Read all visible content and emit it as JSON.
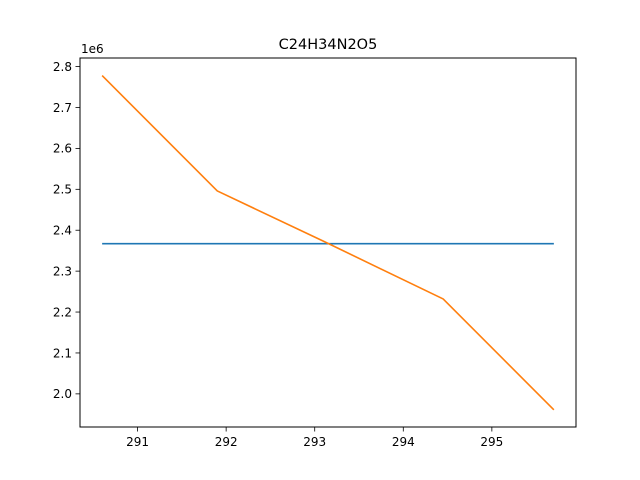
{
  "chart_data": {
    "type": "line",
    "title": "C24H34N2O5",
    "xlabel": "",
    "ylabel": "",
    "y_offset_label": "1e6",
    "y_scale": 1000000,
    "xlim": [
      290.35,
      295.95
    ],
    "ylim": [
      1919000,
      2821000
    ],
    "x_ticks": [
      291,
      292,
      293,
      294,
      295
    ],
    "y_ticks": [
      2.0,
      2.1,
      2.2,
      2.3,
      2.4,
      2.5,
      2.6,
      2.7,
      2.8
    ],
    "x_tick_labels": [
      "291",
      "292",
      "293",
      "294",
      "295"
    ],
    "y_tick_labels": [
      "2.0",
      "2.1",
      "2.2",
      "2.3",
      "2.4",
      "2.5",
      "2.6",
      "2.7",
      "2.8"
    ],
    "grid": false,
    "series": [
      {
        "color": "#1f77b4",
        "x": [
          290.6,
          295.7
        ],
        "y": [
          2367000,
          2367000
        ]
      },
      {
        "color": "#ff7f0e",
        "x": [
          290.6,
          291.9,
          293.1,
          294.45,
          295.7
        ],
        "y": [
          2778000,
          2496000,
          2373000,
          2232000,
          1961000
        ]
      }
    ]
  }
}
